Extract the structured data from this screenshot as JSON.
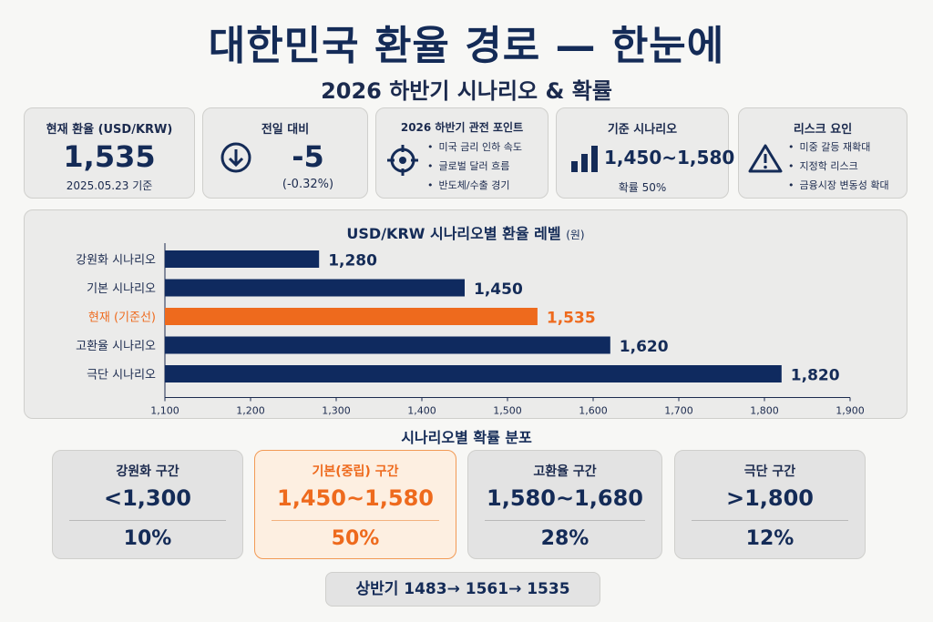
{
  "header": {
    "title": "대한민국 환율 경로 — 한눈에",
    "subtitle": "2026 하반기 시나리오 & 확률"
  },
  "kpis": {
    "current": {
      "title": "현재 환율 (USD/KRW)",
      "value": "1,535",
      "note": "2025.05.23 기준"
    },
    "change": {
      "title": "전일 대비",
      "value": "-5",
      "note": "(-0.32%)",
      "icon": "down-arrow-circle-icon"
    },
    "focus": {
      "title": "2026 하반기 관전 포인트",
      "icon": "crosshair-target-icon",
      "items": [
        "미국 금리 인하 속도",
        "글로벌 달러 흐름",
        "반도체/수출 경기"
      ]
    },
    "base": {
      "title": "기준 시나리오",
      "value": "1,450~1,580",
      "note": "확률 50%",
      "icon": "bar-chart-icon"
    },
    "risk": {
      "title": "리스크 요인",
      "icon": "warning-icon",
      "items": [
        "미중 갈등 재확대",
        "지정학 리스크",
        "금융시장 변동성 확대"
      ]
    }
  },
  "colors": {
    "navy": "#142b57",
    "bar": "#0f2a5f",
    "highlight": "#ee6a1d",
    "highlight_bg": "#fdefe1"
  },
  "chart_data": {
    "type": "bar",
    "orientation": "horizontal",
    "title": "USD/KRW 시나리오별 환율 레벨",
    "unit": "(원)",
    "categories": [
      "강원화 시나리오",
      "기본 시나리오",
      "현재 (기준선)",
      "고환율 시나리오",
      "극단 시나리오"
    ],
    "values": [
      1280,
      1450,
      1535,
      1620,
      1820
    ],
    "value_labels": [
      "1,280",
      "1,450",
      "1,535",
      "1,620",
      "1,820"
    ],
    "highlight_index": 2,
    "xlim": [
      1100,
      1900
    ],
    "xticks": [
      1100,
      1200,
      1300,
      1400,
      1500,
      1600,
      1700,
      1800,
      1900
    ],
    "xtick_labels": [
      "1,100",
      "1,200",
      "1,300",
      "1,400",
      "1,500",
      "1,600",
      "1,700",
      "1,800",
      "1,900"
    ],
    "grid": false
  },
  "probabilities": {
    "title": "시나리오별 확률 분포",
    "items": [
      {
        "label": "강원화 구간",
        "range": "<1,300",
        "pct": "10%"
      },
      {
        "label": "기본(중립) 구간",
        "range": "1,450~1,580",
        "pct": "50%"
      },
      {
        "label": "고환율 구간",
        "range": "1,580~1,680",
        "pct": "28%"
      },
      {
        "label": "극단 구간",
        "range": ">1,800",
        "pct": "12%"
      }
    ]
  },
  "footer": {
    "path": "상반기 1483→ 1561→ 1535"
  }
}
